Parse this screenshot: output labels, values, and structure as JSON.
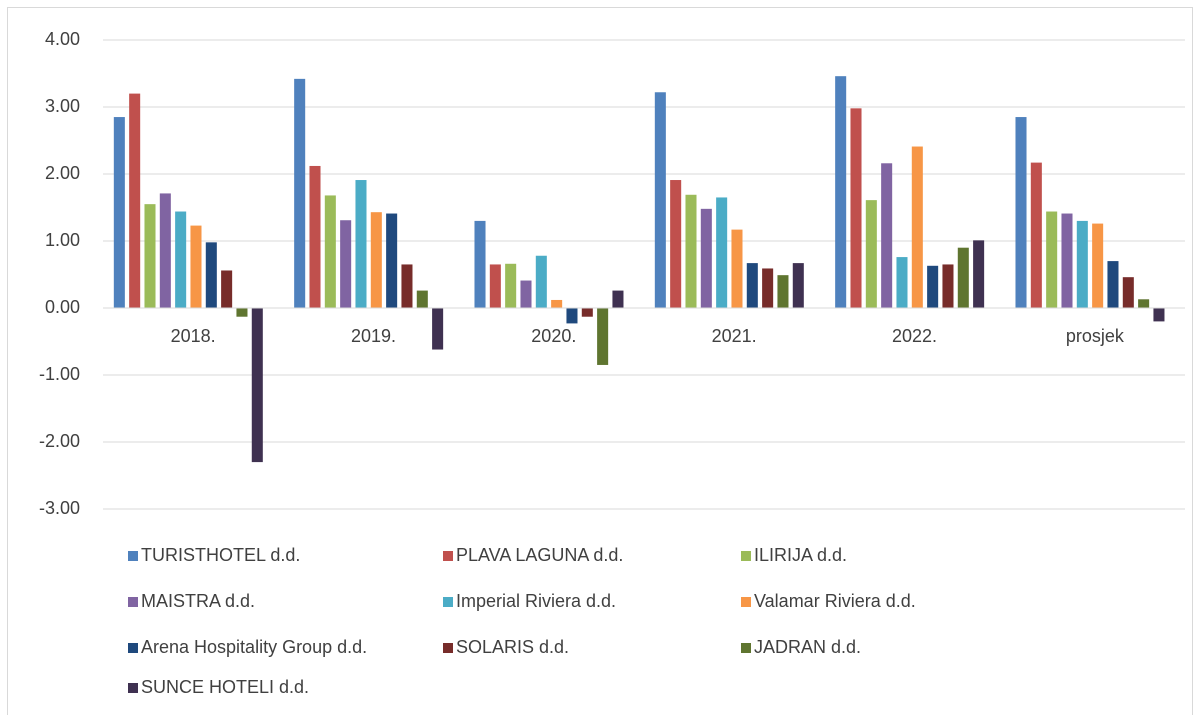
{
  "chart_data": {
    "type": "bar",
    "categories": [
      "2018.",
      "2019.",
      "2020.",
      "2021.",
      "2022.",
      "prosjek"
    ],
    "series": [
      {
        "name": "TURISTHOTEL d.d.",
        "color": "#4f81bd",
        "values": [
          2.85,
          3.42,
          1.3,
          3.22,
          3.46,
          2.85
        ]
      },
      {
        "name": "PLAVA LAGUNA d.d.",
        "color": "#c0504d",
        "values": [
          3.2,
          2.12,
          0.65,
          1.91,
          2.98,
          2.17
        ]
      },
      {
        "name": "ILIRIJA d.d.",
        "color": "#9bbb59",
        "values": [
          1.55,
          1.68,
          0.66,
          1.69,
          1.61,
          1.44
        ]
      },
      {
        "name": "MAISTRA d.d.",
        "color": "#8064a2",
        "values": [
          1.71,
          1.31,
          0.41,
          1.48,
          2.16,
          1.41
        ]
      },
      {
        "name": "Imperial Riviera d.d.",
        "color": "#4bacc6",
        "values": [
          1.44,
          1.91,
          0.78,
          1.65,
          0.76,
          1.3
        ]
      },
      {
        "name": "Valamar Riviera d.d.",
        "color": "#f79646",
        "values": [
          1.23,
          1.43,
          0.12,
          1.17,
          2.41,
          1.26
        ]
      },
      {
        "name": "Arena Hospitality Group d.d.",
        "color": "#1f497d",
        "values": [
          0.98,
          1.41,
          -0.23,
          0.67,
          0.63,
          0.7
        ]
      },
      {
        "name": "SOLARIS d.d.",
        "color": "#772c2a",
        "values": [
          0.56,
          0.65,
          -0.13,
          0.59,
          0.65,
          0.46
        ]
      },
      {
        "name": "JADRAN d.d.",
        "color": "#5f7530",
        "values": [
          -0.13,
          0.26,
          -0.85,
          0.49,
          0.9,
          0.13
        ]
      },
      {
        "name": "SUNCE HOTELI d.d.",
        "color": "#3f3151",
        "values": [
          -2.3,
          -0.62,
          0.26,
          0.67,
          1.01,
          -0.2
        ]
      }
    ],
    "ylim": [
      -3,
      4
    ],
    "yticks": [
      {
        "value": -3,
        "label": "-3.00"
      },
      {
        "value": -2,
        "label": "-2.00"
      },
      {
        "value": -1,
        "label": "-1.00"
      },
      {
        "value": 0,
        "label": "0.00"
      },
      {
        "value": 1,
        "label": "1.00"
      },
      {
        "value": 2,
        "label": "2.00"
      },
      {
        "value": 3,
        "label": "3.00"
      },
      {
        "value": 4,
        "label": "4.00"
      }
    ],
    "grid": true,
    "legend": "bottom"
  }
}
